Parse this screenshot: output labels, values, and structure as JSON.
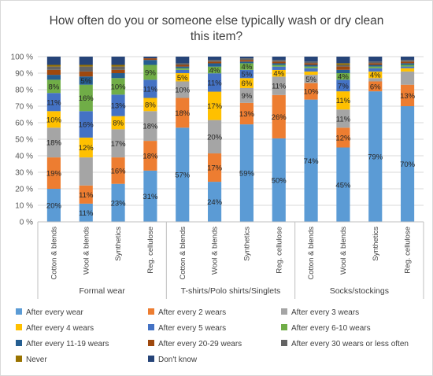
{
  "chart_data": {
    "type": "bar",
    "stacked": true,
    "percent_stacked": true,
    "title": "How often do you or someone else typically wash or dry clean this item?",
    "title_lines": [
      "How often do you or someone else typically wash or dry clean",
      "this item?"
    ],
    "ylim": [
      0,
      100
    ],
    "yticks": [
      "0 %",
      "10 %",
      "20 %",
      "30 %",
      "40 %",
      "50 %",
      "60 %",
      "70 %",
      "80 %",
      "90 %",
      "100 %"
    ],
    "groups": [
      {
        "label": "Formal wear",
        "categories": [
          "Cotton & blends",
          "Wool & blends",
          "Synthetics",
          "Reg. cellulose"
        ]
      },
      {
        "label": "T-shirts/Polo shirts/Singlets",
        "categories": [
          "Cotton & blends",
          "Wool & blends",
          "Synthetics",
          "Reg. cellulose"
        ]
      },
      {
        "label": "Socks/stockings",
        "categories": [
          "Cotton & blends",
          "Wool & blends",
          "Synthetics",
          "Reg. cellulose"
        ]
      }
    ],
    "series": [
      {
        "name": "After every wear",
        "color": "#5B9BD5",
        "values": [
          20,
          11,
          23,
          31,
          57,
          24,
          59,
          50,
          74,
          45,
          79,
          70
        ],
        "labels": [
          "20%",
          "11%",
          "23%",
          "31%",
          "57%",
          "24%",
          "59%",
          "50%",
          "74%",
          "45%",
          "79%",
          "70%"
        ]
      },
      {
        "name": "After every 2 wears",
        "color": "#ED7D31",
        "values": [
          19,
          11,
          16,
          18,
          18,
          17,
          13,
          26,
          10,
          12,
          6,
          13
        ],
        "labels": [
          "19%",
          "11%",
          "16%",
          "18%",
          "18%",
          "17%",
          "13%",
          "26%",
          "10%",
          "12%",
          "6%",
          "13%"
        ]
      },
      {
        "name": "After every 3 wears",
        "color": "#A5A5A5",
        "values": [
          18,
          17,
          17,
          18,
          10,
          20,
          9,
          11,
          5,
          11,
          2,
          8
        ],
        "labels": [
          "18%",
          "",
          "17%",
          "18%",
          "10%",
          "20%",
          "9%",
          "11%",
          "5%",
          "11%",
          "",
          ""
        ]
      },
      {
        "name": "After every 4 wears",
        "color": "#FFC000",
        "values": [
          10,
          12,
          8,
          8,
          5,
          17,
          6,
          4,
          2,
          11,
          4,
          2
        ],
        "labels": [
          "10%",
          "12%",
          "8%",
          "8%",
          "5%",
          "17%",
          "6%",
          "4%",
          "",
          "11%",
          "4%",
          ""
        ]
      },
      {
        "name": "After every 5 wears",
        "color": "#4472C4",
        "values": [
          11,
          16,
          13,
          11,
          2,
          11,
          5,
          2,
          2,
          7,
          2,
          1
        ],
        "labels": [
          "11%",
          "16%",
          "13%",
          "11%",
          "",
          "11%",
          "5%",
          "",
          "",
          "7%",
          "",
          ""
        ]
      },
      {
        "name": "After every 6-10 wears",
        "color": "#70AD47",
        "values": [
          8,
          16,
          10,
          9,
          1,
          4,
          4,
          1,
          1,
          4,
          1,
          1
        ],
        "labels": [
          "8%",
          "16%",
          "10%",
          "9%",
          "",
          "4%",
          "4%",
          "",
          "",
          "4%",
          "",
          ""
        ]
      },
      {
        "name": "After every 11-19 wears",
        "color": "#255E91",
        "values": [
          3,
          5,
          3,
          3,
          1,
          2,
          1,
          1,
          1,
          2,
          1,
          1
        ],
        "labels": [
          "",
          "5%",
          "",
          "",
          "",
          "",
          "",
          "",
          "",
          "",
          "",
          ""
        ]
      },
      {
        "name": "After every 20-29 wears",
        "color": "#9E480E",
        "values": [
          3,
          3,
          2,
          1,
          1,
          1,
          1,
          1,
          1,
          2,
          1,
          1
        ],
        "labels": [
          "",
          "",
          "",
          "",
          "",
          "",
          "",
          "",
          "",
          "",
          "",
          ""
        ]
      },
      {
        "name": "After every 30 wears or less often",
        "color": "#636363",
        "values": [
          2,
          3,
          2,
          0,
          1,
          1,
          1,
          1,
          1,
          1,
          1,
          1
        ],
        "labels": [
          "",
          "",
          "",
          "",
          "",
          "",
          "",
          "",
          "",
          "",
          "",
          ""
        ]
      },
      {
        "name": "Never",
        "color": "#997300",
        "values": [
          1,
          1,
          1,
          0,
          0,
          0,
          0,
          0,
          0,
          1,
          0,
          0
        ],
        "labels": [
          "",
          "",
          "",
          "",
          "",
          "",
          "",
          "",
          "",
          "",
          "",
          ""
        ]
      },
      {
        "name": "Don't know",
        "color": "#264478",
        "values": [
          5,
          5,
          5,
          1,
          4,
          2,
          1,
          2,
          3,
          4,
          3,
          2
        ],
        "labels": [
          "",
          "",
          "",
          "",
          "",
          "",
          "",
          "",
          "",
          "",
          "",
          ""
        ]
      }
    ],
    "grid": true,
    "legend_position": "bottom"
  }
}
